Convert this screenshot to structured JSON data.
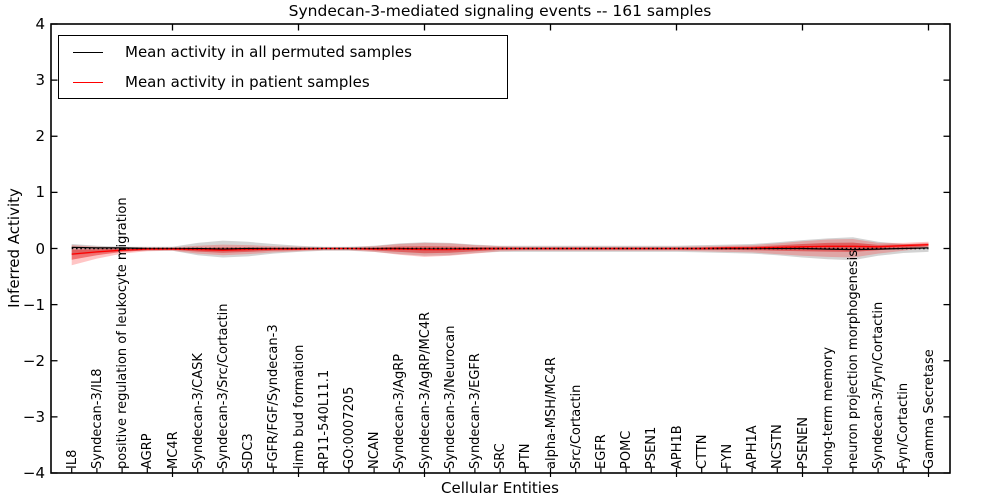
{
  "title": "Syndecan-3-mediated signaling events -- 161 samples",
  "legend": {
    "items": [
      {
        "label": "Mean activity in all permuted samples",
        "color": "#000000"
      },
      {
        "label": "Mean activity in patient samples",
        "color": "#ff0000"
      }
    ]
  },
  "chart_data": {
    "type": "line",
    "title": "Syndecan-3-mediated signaling events -- 161 samples",
    "xlabel": "Cellular Entities",
    "ylabel": "Inferred Activity",
    "ylim": [
      -4,
      4
    ],
    "ytick_values": [
      4,
      3,
      2,
      1,
      0,
      -1,
      -2,
      -3,
      -4
    ],
    "grid": false,
    "legend_position": "upper left",
    "zero_line": {
      "style": "dotted",
      "color": "#000000",
      "y": 0
    },
    "categories": [
      "IL8",
      "Syndecan-3/IL8",
      "positive regulation of leukocyte migration",
      "AGRP",
      "MC4R",
      "Syndecan-3/CASK",
      "Syndecan-3/Src/Cortactin",
      "SDC3",
      "FGFR/FGF/Syndecan-3",
      "limb bud formation",
      "RP11-540L11.1",
      "GO:0007205",
      "NCAN",
      "Syndecan-3/AgRP",
      "Syndecan-3/AgRP/MC4R",
      "Syndecan-3/Neurocan",
      "Syndecan-3/EGFR",
      "SRC",
      "PTN",
      "alpha-MSH/MC4R",
      "Src/Cortactin",
      "EGFR",
      "POMC",
      "PSEN1",
      "APH1B",
      "CTTN",
      "FYN",
      "APH1A",
      "NCSTN",
      "PSENEN",
      "long-term memory",
      "neuron projection morphogenesis",
      "Syndecan-3/Fyn/Cortactin",
      "Fyn/Cortactin",
      "Gamma Secretase"
    ],
    "series": [
      {
        "name": "Mean activity in all permuted samples",
        "color": "#000000",
        "values": [
          0.02,
          0.01,
          0.01,
          0,
          0,
          0,
          -0.01,
          0,
          0,
          0,
          0,
          0,
          0,
          0,
          -0.01,
          -0.01,
          0,
          0,
          0,
          0,
          0,
          0,
          0,
          0,
          0,
          0,
          0,
          0,
          0,
          0,
          -0.01,
          -0.02,
          -0.01,
          0,
          0.01
        ]
      },
      {
        "name": "Mean activity in patient samples",
        "color": "#ff0000",
        "values": [
          -0.1,
          -0.06,
          -0.03,
          -0.01,
          -0.01,
          -0.02,
          -0.03,
          -0.02,
          -0.01,
          -0.01,
          0,
          0,
          -0.01,
          -0.01,
          -0.02,
          -0.02,
          -0.01,
          0,
          0,
          0,
          0,
          0,
          0,
          0,
          0,
          0,
          0.01,
          0.01,
          0.02,
          0.03,
          0.04,
          0.04,
          0.03,
          0.05,
          0.07
        ]
      }
    ],
    "bands": [
      {
        "name": "permuted samples range",
        "color": "rgba(110,110,110,0.30)",
        "upper": [
          0.08,
          0.05,
          0.03,
          0.03,
          0.03,
          0.1,
          0.14,
          0.12,
          0.08,
          0.05,
          0.03,
          0.03,
          0.05,
          0.09,
          0.11,
          0.1,
          0.07,
          0.05,
          0.05,
          0.05,
          0.05,
          0.05,
          0.05,
          0.05,
          0.05,
          0.06,
          0.07,
          0.08,
          0.11,
          0.15,
          0.18,
          0.2,
          0.12,
          0.08,
          0.07
        ],
        "lower": [
          -0.12,
          -0.08,
          -0.05,
          -0.04,
          -0.04,
          -0.12,
          -0.16,
          -0.14,
          -0.09,
          -0.06,
          -0.04,
          -0.04,
          -0.06,
          -0.1,
          -0.13,
          -0.12,
          -0.08,
          -0.06,
          -0.06,
          -0.06,
          -0.06,
          -0.06,
          -0.06,
          -0.06,
          -0.06,
          -0.07,
          -0.08,
          -0.09,
          -0.12,
          -0.16,
          -0.19,
          -0.21,
          -0.13,
          -0.08,
          -0.06
        ]
      },
      {
        "name": "patient samples range",
        "color": "rgba(255,45,45,0.28)",
        "upper": [
          0.06,
          0.03,
          0.02,
          0.02,
          0.02,
          0.05,
          0.07,
          0.06,
          0.04,
          0.03,
          0.02,
          0.02,
          0.04,
          0.08,
          0.1,
          0.09,
          0.06,
          0.04,
          0.03,
          0.03,
          0.03,
          0.03,
          0.03,
          0.03,
          0.03,
          0.04,
          0.05,
          0.06,
          0.09,
          0.13,
          0.16,
          0.17,
          0.1,
          0.1,
          0.12
        ],
        "lower": [
          -0.3,
          -0.18,
          -0.09,
          -0.05,
          -0.04,
          -0.09,
          -0.12,
          -0.1,
          -0.07,
          -0.05,
          -0.03,
          -0.03,
          -0.06,
          -0.11,
          -0.15,
          -0.13,
          -0.09,
          -0.05,
          -0.04,
          -0.04,
          -0.04,
          -0.04,
          -0.04,
          -0.04,
          -0.04,
          -0.05,
          -0.06,
          -0.07,
          -0.1,
          -0.13,
          -0.15,
          -0.16,
          -0.09,
          -0.04,
          0.01
        ]
      }
    ]
  }
}
